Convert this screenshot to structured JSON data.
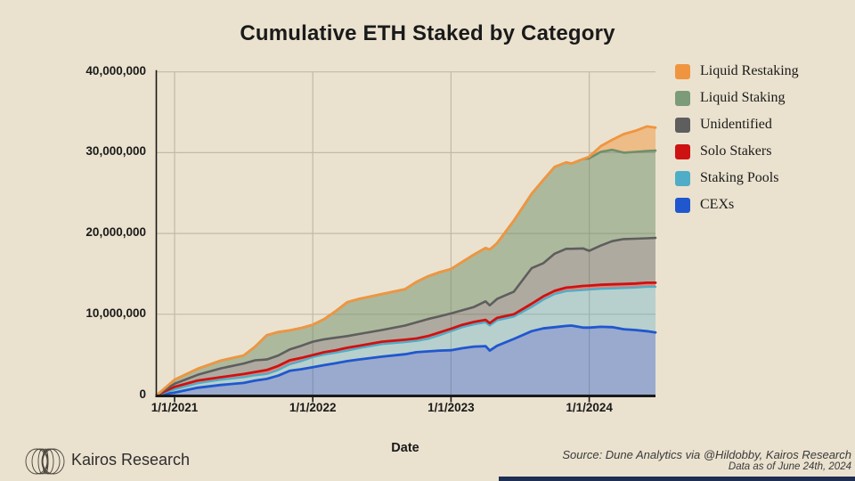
{
  "title": "Cumulative ETH Staked by Category",
  "xlabel": "Date",
  "footer": {
    "brand": "Kairos Research",
    "logo_icon": "overlapping-ellipses-logo",
    "source_line1": "Source: Dune Analytics via @Hildobby, Kairos Research",
    "source_line2": "Data as of June 24th, 2024"
  },
  "colors": {
    "background": "#EAE2CF",
    "text": "#1a1a1a",
    "grid": "#C3B9A3",
    "axis": "#1a1a1a",
    "bottom_bar": "#1E2D52"
  },
  "legend": [
    {
      "label": "Liquid Restaking",
      "color": "#F0953F"
    },
    {
      "label": "Liquid Staking",
      "color": "#7C9B78"
    },
    {
      "label": "Unidentified",
      "color": "#5E5E5E"
    },
    {
      "label": "Solo Stakers",
      "color": "#CE1212"
    },
    {
      "label": "Staking Pools",
      "color": "#4FADC7"
    },
    {
      "label": "CEXs",
      "color": "#2057CE"
    }
  ],
  "chart_data": {
    "type": "area",
    "stacked": true,
    "title": "Cumulative ETH Staked by Category",
    "xlabel": "Date",
    "ylabel": "",
    "unit": "ETH (millions)",
    "grid": true,
    "legend_position": "right",
    "ylim_millions": [
      0,
      40
    ],
    "y_ticks": [
      {
        "value_millions": 0,
        "label": "0"
      },
      {
        "value_millions": 10,
        "label": "10,000,000"
      },
      {
        "value_millions": 20,
        "label": "20,000,000"
      },
      {
        "value_millions": 30,
        "label": "30,000,000"
      },
      {
        "value_millions": 40,
        "label": "40,000,000"
      }
    ],
    "x_ticks": [
      {
        "year": 2021,
        "label": "1/1/2021"
      },
      {
        "year": 2022,
        "label": "1/1/2022"
      },
      {
        "year": 2023,
        "label": "1/1/2023"
      },
      {
        "year": 2024,
        "label": "1/1/2024"
      }
    ],
    "x_range": [
      "2020-11-15",
      "2024-06-24"
    ],
    "dates": [
      "2020-11-15",
      "2021-01-01",
      "2021-03-01",
      "2021-05-01",
      "2021-07-01",
      "2021-08-01",
      "2021-09-01",
      "2021-10-01",
      "2021-11-01",
      "2021-12-01",
      "2022-01-01",
      "2022-02-01",
      "2022-03-01",
      "2022-04-01",
      "2022-05-01",
      "2022-07-01",
      "2022-09-01",
      "2022-10-01",
      "2022-11-01",
      "2022-12-01",
      "2023-01-01",
      "2023-02-01",
      "2023-03-01",
      "2023-04-01",
      "2023-04-12",
      "2023-05-01",
      "2023-06-15",
      "2023-08-01",
      "2023-09-01",
      "2023-10-01",
      "2023-11-01",
      "2023-11-15",
      "2023-12-15",
      "2024-01-01",
      "2024-02-01",
      "2024-03-01",
      "2024-04-01",
      "2024-05-01",
      "2024-06-01",
      "2024-06-24"
    ],
    "series": [
      {
        "name": "CEXs",
        "color": "#2057CE",
        "fill_alpha": 0.4,
        "line_width": 2.8,
        "values_millions": [
          0,
          0.3,
          0.9,
          1.25,
          1.5,
          1.8,
          2.0,
          2.4,
          3.0,
          3.2,
          3.45,
          3.7,
          3.95,
          4.2,
          4.4,
          4.75,
          5.05,
          5.3,
          5.4,
          5.5,
          5.55,
          5.8,
          6.0,
          6.05,
          5.5,
          6.1,
          6.95,
          7.9,
          8.25,
          8.4,
          8.55,
          8.6,
          8.35,
          8.35,
          8.45,
          8.4,
          8.15,
          8.05,
          7.9,
          7.75
        ]
      },
      {
        "name": "Staking Pools",
        "color": "#4FADC7",
        "fill_alpha": 0.33,
        "line_width": 2.3,
        "values_millions": [
          0,
          0.4,
          0.55,
          0.65,
          0.7,
          0.65,
          0.6,
          0.7,
          0.8,
          1.0,
          1.25,
          1.3,
          1.3,
          1.3,
          1.4,
          1.55,
          1.5,
          1.4,
          1.55,
          1.9,
          2.35,
          2.6,
          2.75,
          2.95,
          3.1,
          3.15,
          2.75,
          3.0,
          3.55,
          4.1,
          4.3,
          4.3,
          4.65,
          4.7,
          4.7,
          4.8,
          5.1,
          5.25,
          5.5,
          5.65
        ]
      },
      {
        "name": "Solo Stakers",
        "color": "#CE1212",
        "fill_alpha": 0.45,
        "line_width": 2.8,
        "values_millions": [
          0,
          0.3,
          0.35,
          0.3,
          0.4,
          0.4,
          0.5,
          0.5,
          0.5,
          0.4,
          0.25,
          0.3,
          0.3,
          0.35,
          0.3,
          0.3,
          0.3,
          0.3,
          0.35,
          0.35,
          0.3,
          0.3,
          0.3,
          0.3,
          0.3,
          0.3,
          0.3,
          0.4,
          0.4,
          0.4,
          0.45,
          0.45,
          0.5,
          0.5,
          0.5,
          0.5,
          0.5,
          0.5,
          0.5,
          0.5
        ]
      },
      {
        "name": "Unidentified",
        "color": "#5E5E5E",
        "fill_alpha": 0.42,
        "line_width": 2.6,
        "values_millions": [
          0,
          0.4,
          0.7,
          1.1,
          1.3,
          1.45,
          1.3,
          1.3,
          1.35,
          1.5,
          1.65,
          1.6,
          1.55,
          1.45,
          1.45,
          1.45,
          1.75,
          2.0,
          2.1,
          2.0,
          1.9,
          1.8,
          1.85,
          2.3,
          2.2,
          2.35,
          2.8,
          4.4,
          4.1,
          4.6,
          4.8,
          4.75,
          4.65,
          4.3,
          4.85,
          5.35,
          5.55,
          5.55,
          5.5,
          5.55
        ]
      },
      {
        "name": "Liquid Staking",
        "color": "#6F8F6B",
        "fill_alpha": 0.5,
        "line_width": 2.6,
        "values_millions": [
          0,
          0.5,
          0.75,
          0.95,
          1.0,
          1.7,
          3.0,
          2.9,
          2.35,
          2.2,
          2.1,
          2.5,
          3.3,
          4.2,
          4.35,
          4.45,
          4.5,
          5.0,
          5.3,
          5.45,
          5.5,
          6.0,
          6.5,
          6.6,
          6.9,
          6.9,
          8.8,
          9.2,
          10.3,
          10.75,
          10.7,
          10.55,
          11.05,
          11.45,
          11.6,
          11.3,
          10.7,
          10.75,
          10.8,
          10.8
        ]
      },
      {
        "name": "Liquid Restaking",
        "color": "#F0953F",
        "fill_alpha": 0.5,
        "line_width": 2.8,
        "values_millions": [
          0,
          0,
          0,
          0,
          0,
          0,
          0,
          0,
          0,
          0,
          0,
          0,
          0,
          0,
          0,
          0,
          0,
          0,
          0,
          0,
          0,
          0,
          0,
          0,
          0,
          0,
          0,
          0,
          0,
          0,
          0,
          0,
          0,
          0.2,
          0.7,
          1.25,
          2.3,
          2.6,
          3.05,
          2.85
        ]
      }
    ]
  }
}
